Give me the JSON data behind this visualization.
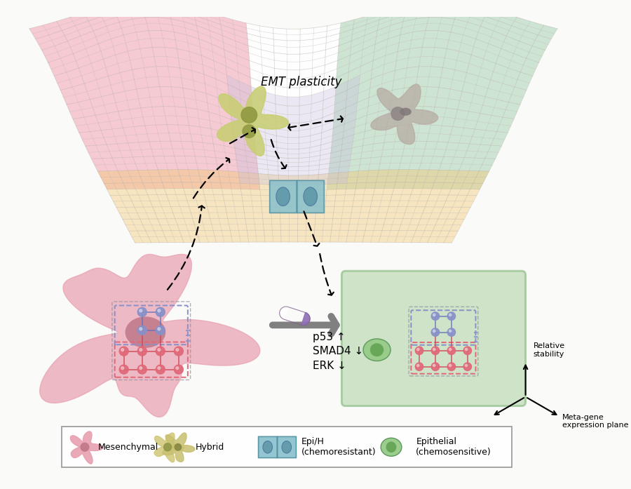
{
  "bg_color": "#FAFAF8",
  "emt_label": "EMT plasticity",
  "arrow_labels": [
    "p53 ↑",
    "SMAD4 ↓",
    "ERK ↓"
  ],
  "legend_labels": [
    "Mesenchymal",
    "Hybrid",
    "Epi/H\n(chemoresistant)",
    "Epithelial\n(chemosensitive)"
  ],
  "axis_label1": "Relative\nstability",
  "axis_label2": "Meta-gene\nexpression plane",
  "landscape": {
    "pink_color": "#F0A0A8",
    "green_color": "#A8D0B0",
    "orange_color": "#F0C880",
    "lavender_color": "#C0B8D8",
    "mesh_color": "#B0A8A0",
    "mesh_alpha": 0.5
  },
  "cells": {
    "mesenchymal_color": "#E898A8",
    "mesenchymal_nucleus": "#C06070",
    "hybrid_color": "#C8C878",
    "hybrid_nucleus": "#A0A840",
    "epi_h_color": "#88C0CC",
    "epi_h_nucleus": "#70A8B8",
    "epithelial_color": "#90C890",
    "epithelial_nucleus": "#60A060",
    "gray_cell_color": "#B0A8A8",
    "gray_nucleus": "#908888"
  },
  "network": {
    "red_node_color": "#E06878",
    "blue_node_color": "#8890C8",
    "red_line_color": "#D04050",
    "blue_line_color": "#6070B8",
    "gray_line_color": "#808080"
  }
}
